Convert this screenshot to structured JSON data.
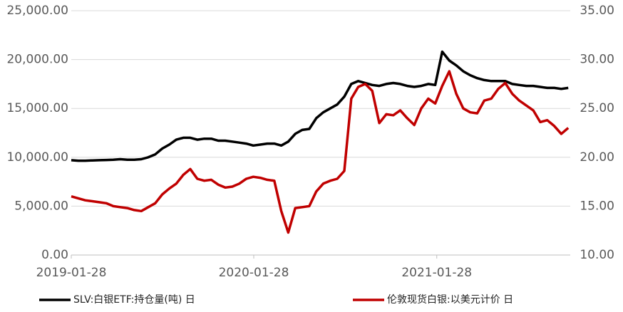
{
  "chart_data": {
    "type": "line",
    "x": [
      "2019-01-28",
      "2019-02-11",
      "2019-02-25",
      "2019-03-11",
      "2019-03-25",
      "2019-04-08",
      "2019-04-22",
      "2019-05-06",
      "2019-05-20",
      "2019-06-03",
      "2019-06-17",
      "2019-07-01",
      "2019-07-15",
      "2019-07-29",
      "2019-08-12",
      "2019-08-26",
      "2019-09-09",
      "2019-09-23",
      "2019-10-07",
      "2019-10-21",
      "2019-11-04",
      "2019-11-18",
      "2019-12-02",
      "2019-12-16",
      "2019-12-30",
      "2020-01-13",
      "2020-01-27",
      "2020-02-10",
      "2020-02-24",
      "2020-03-09",
      "2020-03-23",
      "2020-04-06",
      "2020-04-20",
      "2020-05-04",
      "2020-05-18",
      "2020-06-01",
      "2020-06-15",
      "2020-06-29",
      "2020-07-13",
      "2020-07-27",
      "2020-08-10",
      "2020-08-24",
      "2020-09-07",
      "2020-09-21",
      "2020-10-05",
      "2020-10-19",
      "2020-11-02",
      "2020-11-16",
      "2020-11-30",
      "2020-12-14",
      "2020-12-28",
      "2021-01-11",
      "2021-01-25",
      "2021-02-08",
      "2021-02-22",
      "2021-03-08",
      "2021-03-22",
      "2021-04-05",
      "2021-04-19",
      "2021-05-03",
      "2021-05-17",
      "2021-05-31",
      "2021-06-14",
      "2021-06-28",
      "2021-07-12",
      "2021-07-26",
      "2021-08-09",
      "2021-08-23",
      "2021-09-06",
      "2021-09-20",
      "2021-10-04",
      "2021-10-18"
    ],
    "xlim": [
      "2019-01-28",
      "2021-10-22"
    ],
    "xticks": [
      "2019-01-28",
      "2020-01-28",
      "2021-01-28"
    ],
    "ylim": [
      0,
      25000
    ],
    "yticks": [
      {
        "value": 0,
        "label": "0.00"
      },
      {
        "value": 5000,
        "label": "5,000.00"
      },
      {
        "value": 10000,
        "label": "10,000.00"
      },
      {
        "value": 15000,
        "label": "15,000.00"
      },
      {
        "value": 20000,
        "label": "20,000.00"
      },
      {
        "value": 25000,
        "label": "25,000.00"
      }
    ],
    "y2lim": [
      10,
      35
    ],
    "y2ticks": [
      {
        "value": 10,
        "label": "10.00"
      },
      {
        "value": 15,
        "label": "15.00"
      },
      {
        "value": 20,
        "label": "20.00"
      },
      {
        "value": 25,
        "label": "25.00"
      },
      {
        "value": 30,
        "label": "30.00"
      },
      {
        "value": 35,
        "label": "35.00"
      }
    ],
    "grid": true,
    "series": [
      {
        "name": "SLV:白银ETF:持仓量(吨) 日",
        "color": "#000000",
        "values": [
          9700,
          9650,
          9650,
          9680,
          9700,
          9720,
          9750,
          9800,
          9750,
          9750,
          9800,
          10000,
          10300,
          10900,
          11300,
          11800,
          12000,
          12000,
          11800,
          11900,
          11900,
          11700,
          11700,
          11600,
          11500,
          11400,
          11200,
          11300,
          11400,
          11400,
          11200,
          11600,
          12400,
          12800,
          12900,
          14000,
          14600,
          15000,
          15400,
          16200,
          17500,
          17800,
          17600,
          17400,
          17300,
          17500,
          17600,
          17500,
          17300,
          17200,
          17300,
          17500,
          17400,
          20800,
          19900,
          19400,
          18800,
          18400,
          18100,
          17900,
          17800,
          17800,
          17800,
          17500,
          17400,
          17300,
          17300,
          17200,
          17100,
          17100,
          17000,
          17100
        ]
      },
      {
        "name": "伦敦现货白银:以美元计价 日",
        "color": "#c00000",
        "axis": "y2",
        "values": [
          16.0,
          15.8,
          15.6,
          15.5,
          15.4,
          15.3,
          15.0,
          14.9,
          14.8,
          14.6,
          14.5,
          14.9,
          15.3,
          16.2,
          16.8,
          17.3,
          18.2,
          18.8,
          17.8,
          17.6,
          17.7,
          17.2,
          16.9,
          17.0,
          17.3,
          17.8,
          18.0,
          17.9,
          17.7,
          17.6,
          14.5,
          12.3,
          14.8,
          14.9,
          15.0,
          16.5,
          17.3,
          17.6,
          17.8,
          18.6,
          26.0,
          27.2,
          27.5,
          26.8,
          23.5,
          24.4,
          24.3,
          24.8,
          24.0,
          23.3,
          25.0,
          26.0,
          25.5,
          27.3,
          28.8,
          26.5,
          25.0,
          24.6,
          24.5,
          25.8,
          26.0,
          27.0,
          27.6,
          26.5,
          25.8,
          25.3,
          24.8,
          23.6,
          23.8,
          23.2,
          22.4,
          23.0
        ]
      }
    ]
  }
}
